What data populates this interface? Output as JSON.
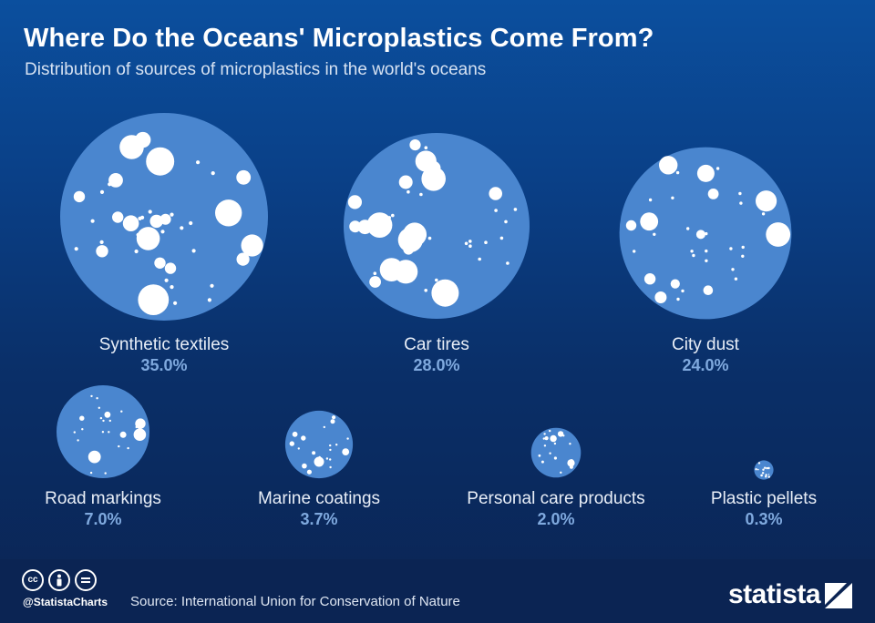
{
  "header": {
    "title": "Where Do the Oceans' Microplastics Come From?",
    "subtitle": "Distribution of sources of microplastics in the world's oceans"
  },
  "chart_data": {
    "type": "bubble",
    "title": "Where Do the Oceans' Microplastics Come From?",
    "subtitle": "Distribution of sources of microplastics in the world's oceans",
    "unit": "%",
    "categories": [
      "Synthetic textiles",
      "Car tires",
      "City dust",
      "Road markings",
      "Marine coatings",
      "Personal care products",
      "Plastic pellets"
    ],
    "values": [
      35.0,
      28.0,
      24.0,
      7.0,
      3.7,
      2.0,
      0.3
    ],
    "value_labels": [
      "35.0%",
      "28.0%",
      "24.0%",
      "7.0%",
      "3.7%",
      "2.0%",
      "0.3%"
    ]
  },
  "colors": {
    "bubble": "#4a86cf",
    "dot": "#ffffff",
    "value_text": "#7fa9de",
    "footer": "#0b2453"
  },
  "icons": [
    "cc-icon",
    "attribution-icon",
    "no-derivatives-icon",
    "statista-logo-icon"
  ],
  "footer": {
    "cc_label": "cc",
    "handle": "@StatistaCharts",
    "source": "Source: International Union for Conservation of Nature",
    "brand": "statista"
  }
}
